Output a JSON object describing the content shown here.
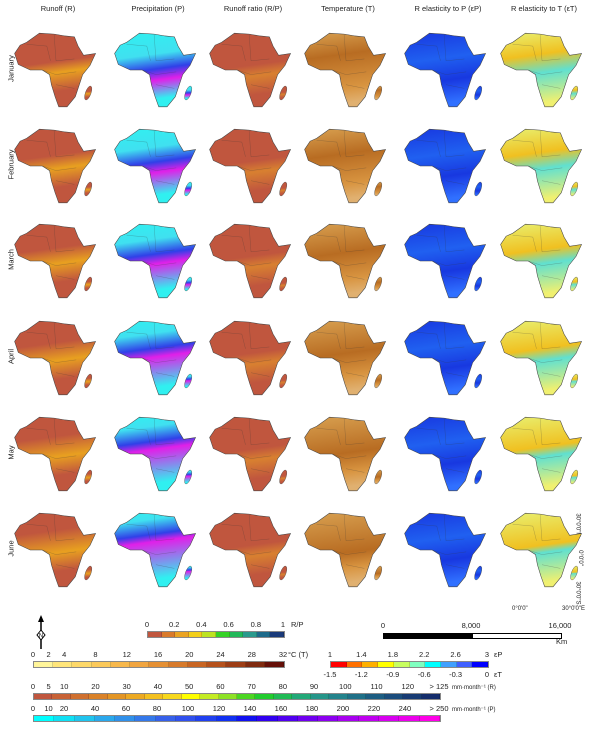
{
  "columns": [
    "Runoff (R)",
    "Precipitation (P)",
    "Runoff ratio (R/P)",
    "Temperature (T)",
    "R elasticity to P (εP)",
    "R elasticity to T (εT)"
  ],
  "months": [
    "January",
    "February",
    "March",
    "April",
    "May",
    "June"
  ],
  "north_arrow": "N",
  "legends": {
    "ratio": {
      "ticks": [
        "0",
        "0.2",
        "0.4",
        "0.6",
        "0.8",
        "1"
      ],
      "unit": "R/P",
      "max": 1,
      "colors": [
        "#c0563e",
        "#d97a2b",
        "#eaa322",
        "#f2cf1a",
        "#bde321",
        "#35d225",
        "#22b85a",
        "#2a9a8d",
        "#1d6a8a",
        "#1a3a7a"
      ]
    },
    "scale": {
      "ticks": [
        "0",
        "8,000",
        "16,000"
      ],
      "unit": "Km"
    },
    "temperature": {
      "ticks": [
        "0",
        "2",
        "4",
        "8",
        "12",
        "16",
        "20",
        "24",
        "28",
        "32"
      ],
      "unit": "°C (T)",
      "max": 32,
      "colors": [
        "#fff59a",
        "#ffe57a",
        "#fdd869",
        "#fbc95a",
        "#f7b84c",
        "#f1a540",
        "#e59034",
        "#d77a2b",
        "#c86523",
        "#b5511c",
        "#9c3d15",
        "#7f2a0f",
        "#650f08"
      ]
    },
    "elasticity": {
      "ticks_p": [
        "1",
        "1.4",
        "1.8",
        "2.2",
        "2.6",
        "3"
      ],
      "ticks_t": [
        "-1.5",
        "-1.2",
        "-0.9",
        "-0.6",
        "-0.3",
        "0"
      ],
      "unit_p": "εP",
      "unit_t": "εT",
      "colors": [
        "#ff0000",
        "#ff7000",
        "#ffb000",
        "#ffff00",
        "#c8ff60",
        "#80ffc0",
        "#00ffff",
        "#40a0ff",
        "#4060ff",
        "#0000ff"
      ]
    },
    "runoff": {
      "ticks": [
        "0",
        "5",
        "10",
        "20",
        "30",
        "40",
        "50",
        "60",
        "70",
        "80",
        "90",
        "100",
        "110",
        "120",
        "> 125"
      ],
      "unit": "mm·month⁻¹ (R)",
      "max": 130,
      "colors": [
        "#c0563e",
        "#c86236",
        "#d0702f",
        "#da8229",
        "#e39525",
        "#eca922",
        "#f3c01f",
        "#f7d81d",
        "#ffff00",
        "#c4ec24",
        "#8ee226",
        "#4cd622",
        "#22cc2e",
        "#20bb55",
        "#22a878",
        "#25968a",
        "#23838c",
        "#1f7088",
        "#1c5d82",
        "#1a4c7c",
        "#173b74",
        "#142d6c"
      ]
    },
    "precipitation": {
      "ticks": [
        "0",
        "10",
        "20",
        "40",
        "60",
        "80",
        "100",
        "120",
        "140",
        "160",
        "180",
        "200",
        "220",
        "240",
        "> 250"
      ],
      "unit": "mm·month⁻¹ (P)",
      "max": 262,
      "colors": [
        "#00ffff",
        "#10e0f4",
        "#20c4ee",
        "#2aa8ec",
        "#3090ea",
        "#3478ea",
        "#3660ea",
        "#3050ee",
        "#2040f0",
        "#1030f2",
        "#1010f0",
        "#3000f0",
        "#5000f0",
        "#7000f0",
        "#8c00f0",
        "#a800f0",
        "#c000f0",
        "#d800f0",
        "#ec00ec",
        "#ff00e8"
      ]
    }
  },
  "geo_labels": {
    "lat_n": "30°0'0\"N",
    "lat_0": "0°0'0\"",
    "lat_s": "30°0'0\"S",
    "lon_0": "0°0'0\"",
    "lon_e": "30°0'0\"E"
  }
}
